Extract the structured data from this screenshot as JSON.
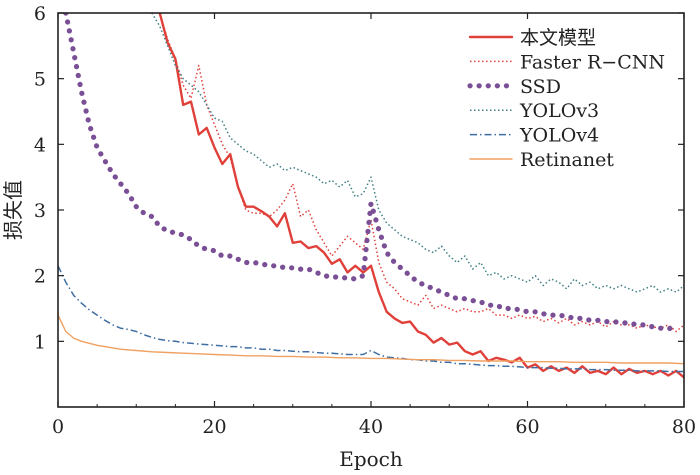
{
  "chart_data": {
    "type": "line",
    "title": "",
    "xlabel": "Epoch",
    "ylabel": "损失值",
    "xlim": [
      0,
      80
    ],
    "ylim": [
      0,
      6
    ],
    "xticks": [
      "0",
      "20",
      "40",
      "60",
      "80"
    ],
    "yticks": [
      "1",
      "2",
      "3",
      "4",
      "5",
      "6"
    ],
    "grid": false,
    "legend_position": "top-right",
    "series": [
      {
        "name": "本文模型",
        "color": "#e0403a",
        "style": "solid",
        "x": [
          13,
          14,
          15,
          16,
          17,
          18,
          19,
          20,
          21,
          22,
          23,
          24,
          25,
          26,
          27,
          28,
          29,
          30,
          31,
          32,
          33,
          34,
          35,
          36,
          37,
          38,
          39,
          40,
          41,
          42,
          43,
          44,
          45,
          46,
          47,
          48,
          49,
          50,
          51,
          52,
          53,
          54,
          55,
          56,
          57,
          58,
          59,
          60,
          61,
          62,
          63,
          64,
          65,
          66,
          67,
          68,
          69,
          70,
          71,
          72,
          73,
          74,
          75,
          76,
          77,
          78,
          79,
          80
        ],
        "y": [
          6.0,
          5.55,
          5.3,
          4.6,
          4.65,
          4.15,
          4.25,
          3.95,
          3.7,
          3.85,
          3.35,
          3.05,
          3.05,
          2.98,
          2.9,
          2.75,
          2.95,
          2.5,
          2.52,
          2.42,
          2.45,
          2.35,
          2.18,
          2.25,
          2.05,
          2.15,
          2.05,
          2.15,
          1.75,
          1.45,
          1.35,
          1.28,
          1.3,
          1.15,
          1.1,
          0.98,
          1.05,
          0.95,
          0.98,
          0.85,
          0.8,
          0.85,
          0.7,
          0.75,
          0.72,
          0.68,
          0.75,
          0.6,
          0.65,
          0.55,
          0.62,
          0.55,
          0.6,
          0.52,
          0.62,
          0.52,
          0.55,
          0.5,
          0.6,
          0.5,
          0.58,
          0.52,
          0.55,
          0.5,
          0.55,
          0.48,
          0.55,
          0.45
        ]
      },
      {
        "name": "Faster R−CNN",
        "color": "#e0403a",
        "style": "dotted",
        "x": [
          13,
          14,
          15,
          16,
          17,
          18,
          19,
          20,
          21,
          22,
          23,
          24,
          25,
          26,
          27,
          28,
          29,
          30,
          31,
          32,
          33,
          34,
          35,
          36,
          37,
          38,
          39,
          40,
          41,
          42,
          43,
          44,
          45,
          46,
          47,
          48,
          49,
          50,
          51,
          52,
          53,
          54,
          55,
          56,
          57,
          58,
          59,
          60,
          61,
          62,
          63,
          64,
          65,
          66,
          67,
          68,
          69,
          70,
          71,
          72,
          73,
          74,
          75,
          76,
          77,
          78,
          79,
          80
        ],
        "y": [
          6.0,
          5.6,
          5.3,
          4.9,
          4.7,
          5.2,
          4.6,
          4.3,
          4.0,
          3.8,
          3.35,
          3.0,
          2.95,
          2.95,
          2.9,
          3.0,
          3.15,
          3.4,
          2.9,
          3.0,
          2.7,
          2.5,
          2.3,
          2.45,
          2.6,
          2.5,
          2.4,
          2.85,
          2.2,
          1.9,
          1.8,
          1.65,
          1.6,
          1.55,
          1.7,
          1.5,
          1.55,
          1.5,
          1.45,
          1.5,
          1.45,
          1.45,
          1.5,
          1.4,
          1.4,
          1.35,
          1.4,
          1.35,
          1.38,
          1.3,
          1.35,
          1.28,
          1.35,
          1.25,
          1.3,
          1.25,
          1.3,
          1.22,
          1.3,
          1.25,
          1.25,
          1.2,
          1.25,
          1.22,
          1.2,
          1.25,
          1.15,
          1.25
        ]
      },
      {
        "name": "SSD",
        "color": "#7a4f96",
        "style": "dots",
        "x": [
          1,
          2,
          3,
          4,
          5,
          6,
          7,
          8,
          9,
          10,
          11,
          12,
          13,
          14,
          15,
          16,
          17,
          18,
          19,
          20,
          21,
          22,
          23,
          24,
          25,
          26,
          27,
          28,
          29,
          30,
          31,
          32,
          33,
          34,
          35,
          36,
          37,
          38,
          39,
          40,
          41,
          42,
          43,
          44,
          45,
          46,
          47,
          48,
          49,
          50,
          51,
          52,
          53,
          54,
          55,
          56,
          57,
          58,
          59,
          60,
          61,
          62,
          63,
          64,
          65,
          66,
          67,
          68,
          69,
          70,
          71,
          72,
          73,
          74,
          75,
          76,
          77,
          78,
          79
        ],
        "y": [
          6.0,
          5.4,
          4.8,
          4.3,
          3.95,
          3.75,
          3.55,
          3.4,
          3.25,
          3.05,
          2.95,
          2.9,
          2.75,
          2.68,
          2.65,
          2.62,
          2.55,
          2.45,
          2.4,
          2.38,
          2.3,
          2.3,
          2.25,
          2.2,
          2.2,
          2.18,
          2.15,
          2.15,
          2.12,
          2.12,
          2.1,
          2.1,
          2.05,
          2.0,
          1.98,
          1.98,
          1.96,
          1.95,
          2.0,
          3.1,
          2.7,
          2.35,
          2.2,
          2.1,
          2.0,
          1.9,
          1.85,
          1.8,
          1.75,
          1.7,
          1.65,
          1.65,
          1.62,
          1.6,
          1.55,
          1.55,
          1.5,
          1.5,
          1.48,
          1.45,
          1.45,
          1.42,
          1.4,
          1.4,
          1.38,
          1.35,
          1.35,
          1.32,
          1.32,
          1.3,
          1.3,
          1.28,
          1.28,
          1.25,
          1.25,
          1.22,
          1.2,
          1.2,
          1.18
        ]
      },
      {
        "name": "YOLOv3",
        "color": "#3f7f85",
        "style": "dotted",
        "x": [
          12,
          13,
          14,
          15,
          16,
          17,
          18,
          19,
          20,
          21,
          22,
          23,
          24,
          25,
          26,
          27,
          28,
          29,
          30,
          31,
          32,
          33,
          34,
          35,
          36,
          37,
          38,
          39,
          40,
          41,
          42,
          43,
          44,
          45,
          46,
          47,
          48,
          49,
          50,
          51,
          52,
          53,
          54,
          55,
          56,
          57,
          58,
          59,
          60,
          61,
          62,
          63,
          64,
          65,
          66,
          67,
          68,
          69,
          70,
          71,
          72,
          73,
          74,
          75,
          76,
          77,
          78,
          79,
          80
        ],
        "y": [
          6.0,
          5.8,
          5.5,
          5.2,
          5.0,
          4.9,
          4.8,
          4.6,
          4.4,
          4.35,
          4.1,
          4.0,
          3.9,
          3.85,
          3.75,
          3.65,
          3.7,
          3.6,
          3.65,
          3.6,
          3.55,
          3.5,
          3.4,
          3.45,
          3.35,
          3.45,
          3.2,
          3.25,
          3.5,
          3.0,
          2.8,
          2.7,
          2.6,
          2.55,
          2.5,
          2.4,
          2.35,
          2.45,
          2.3,
          2.2,
          2.3,
          2.1,
          2.2,
          2.0,
          2.05,
          1.95,
          2.0,
          1.95,
          1.9,
          2.0,
          1.85,
          1.95,
          1.9,
          1.8,
          1.95,
          1.85,
          1.9,
          1.8,
          1.85,
          1.8,
          1.85,
          1.8,
          1.75,
          1.8,
          1.85,
          1.75,
          1.8,
          1.75,
          1.85
        ]
      },
      {
        "name": "YOLOv4",
        "color": "#3f6ea3",
        "style": "dashdot",
        "x": [
          0,
          1,
          2,
          3,
          4,
          5,
          6,
          7,
          8,
          9,
          10,
          11,
          12,
          13,
          14,
          15,
          16,
          17,
          18,
          19,
          20,
          21,
          22,
          23,
          24,
          25,
          26,
          27,
          28,
          29,
          30,
          31,
          32,
          33,
          34,
          35,
          36,
          37,
          38,
          39,
          40,
          41,
          42,
          43,
          44,
          45,
          46,
          47,
          48,
          49,
          50,
          51,
          52,
          53,
          54,
          55,
          56,
          57,
          58,
          59,
          60,
          61,
          62,
          63,
          64,
          65,
          66,
          67,
          68,
          69,
          70,
          71,
          72,
          73,
          74,
          75,
          76,
          77,
          78,
          79,
          80
        ],
        "y": [
          2.15,
          1.9,
          1.7,
          1.58,
          1.48,
          1.4,
          1.32,
          1.25,
          1.2,
          1.18,
          1.15,
          1.1,
          1.06,
          1.03,
          1.01,
          1.0,
          0.98,
          0.97,
          0.96,
          0.95,
          0.94,
          0.93,
          0.92,
          0.92,
          0.9,
          0.9,
          0.88,
          0.88,
          0.86,
          0.86,
          0.85,
          0.84,
          0.84,
          0.83,
          0.82,
          0.82,
          0.81,
          0.8,
          0.8,
          0.8,
          0.86,
          0.8,
          0.76,
          0.75,
          0.74,
          0.72,
          0.72,
          0.7,
          0.7,
          0.68,
          0.68,
          0.66,
          0.66,
          0.65,
          0.64,
          0.63,
          0.63,
          0.62,
          0.62,
          0.61,
          0.6,
          0.6,
          0.6,
          0.59,
          0.59,
          0.58,
          0.58,
          0.58,
          0.57,
          0.57,
          0.57,
          0.56,
          0.56,
          0.56,
          0.55,
          0.55,
          0.55,
          0.55,
          0.54,
          0.54,
          0.54
        ]
      },
      {
        "name": "Retinanet",
        "color": "#f0a060",
        "style": "solid-thin",
        "x": [
          0,
          1,
          2,
          3,
          4,
          5,
          6,
          7,
          8,
          9,
          10,
          12,
          14,
          16,
          18,
          20,
          22,
          24,
          26,
          28,
          30,
          32,
          34,
          36,
          38,
          40,
          42,
          44,
          46,
          48,
          50,
          52,
          54,
          56,
          58,
          60,
          62,
          64,
          66,
          68,
          70,
          72,
          74,
          76,
          78,
          80
        ],
        "y": [
          1.4,
          1.15,
          1.05,
          1.0,
          0.97,
          0.94,
          0.92,
          0.9,
          0.88,
          0.87,
          0.86,
          0.84,
          0.83,
          0.82,
          0.81,
          0.8,
          0.79,
          0.78,
          0.78,
          0.77,
          0.77,
          0.76,
          0.76,
          0.75,
          0.75,
          0.74,
          0.74,
          0.73,
          0.72,
          0.72,
          0.71,
          0.71,
          0.7,
          0.7,
          0.7,
          0.69,
          0.69,
          0.69,
          0.68,
          0.68,
          0.68,
          0.67,
          0.67,
          0.67,
          0.67,
          0.66
        ]
      }
    ]
  }
}
